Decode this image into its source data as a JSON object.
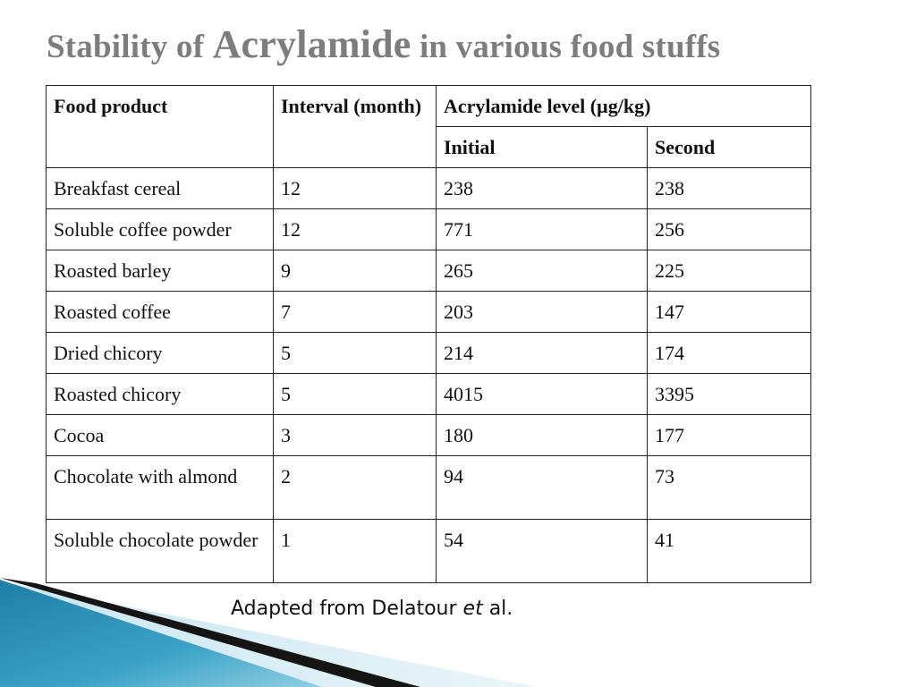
{
  "title": {
    "part1": "Stability of ",
    "part2": "Acrylamide",
    "part3": " in various food stuffs"
  },
  "table": {
    "headers": {
      "food_product": "Food product",
      "interval": "Interval (month)",
      "acrylamide_level": "Acrylamide level (µg/kg)",
      "initial": "Initial",
      "second": "Second"
    },
    "rows": [
      {
        "product": "Breakfast cereal",
        "interval": "12",
        "initial": "238",
        "second": "238"
      },
      {
        "product": "Soluble coffee powder",
        "interval": "12",
        "initial": "771",
        "second": "256"
      },
      {
        "product": "Roasted barley",
        "interval": "9",
        "initial": "265",
        "second": "225"
      },
      {
        "product": "Roasted coffee",
        "interval": "7",
        "initial": "203",
        "second": "147"
      },
      {
        "product": "Dried chicory",
        "interval": "5",
        "initial": "214",
        "second": "174"
      },
      {
        "product": "Roasted chicory",
        "interval": "5",
        "initial": "4015",
        "second": "3395"
      },
      {
        "product": "Cocoa",
        "interval": "3",
        "initial": "180",
        "second": "177"
      },
      {
        "product": "Chocolate with almond",
        "interval": "2",
        "initial": "94",
        "second": "73"
      },
      {
        "product": "Soluble chocolate powder",
        "interval": "1",
        "initial": "54",
        "second": "41"
      }
    ]
  },
  "caption": {
    "prefix": "Adapted from Delatour ",
    "italic": "et",
    "suffix": " al."
  },
  "colors": {
    "title": "#7d7d7d",
    "accent_blue": "#2f8fb5",
    "accent_dark": "#1a1a1a"
  }
}
